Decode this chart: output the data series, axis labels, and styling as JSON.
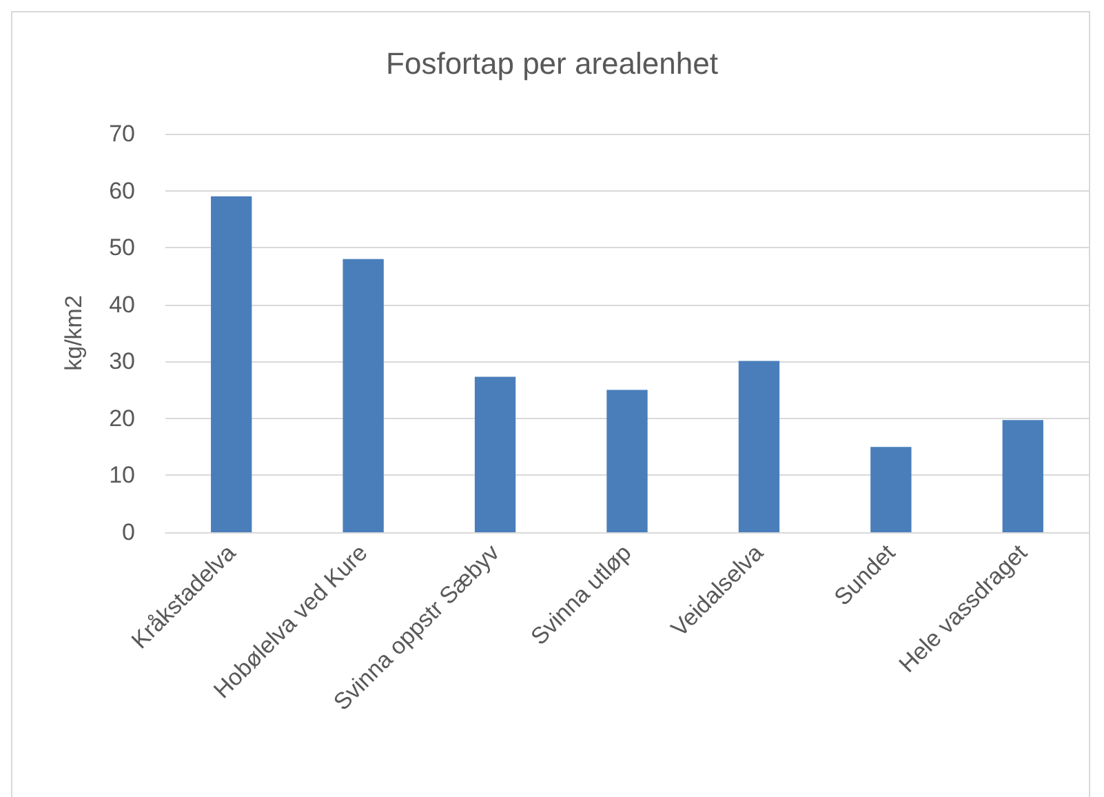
{
  "chart_data": {
    "type": "bar",
    "title": "Fosfortap per arealenhet",
    "ylabel": "kg/km2",
    "categories": [
      "Kråkstadelva",
      "Hobølelva ved Kure",
      "Svinna oppstr Sæbyv",
      "Svinna utløp",
      "Veidalselva",
      "Sundet",
      "Hele vassdraget"
    ],
    "values": [
      59,
      48,
      27.3,
      25,
      30.1,
      15,
      19.7
    ],
    "color": "#4a7ebb",
    "ylim": [
      0,
      70
    ],
    "yticks": [
      0,
      10,
      20,
      30,
      40,
      50,
      60,
      70
    ],
    "grid": "y"
  }
}
